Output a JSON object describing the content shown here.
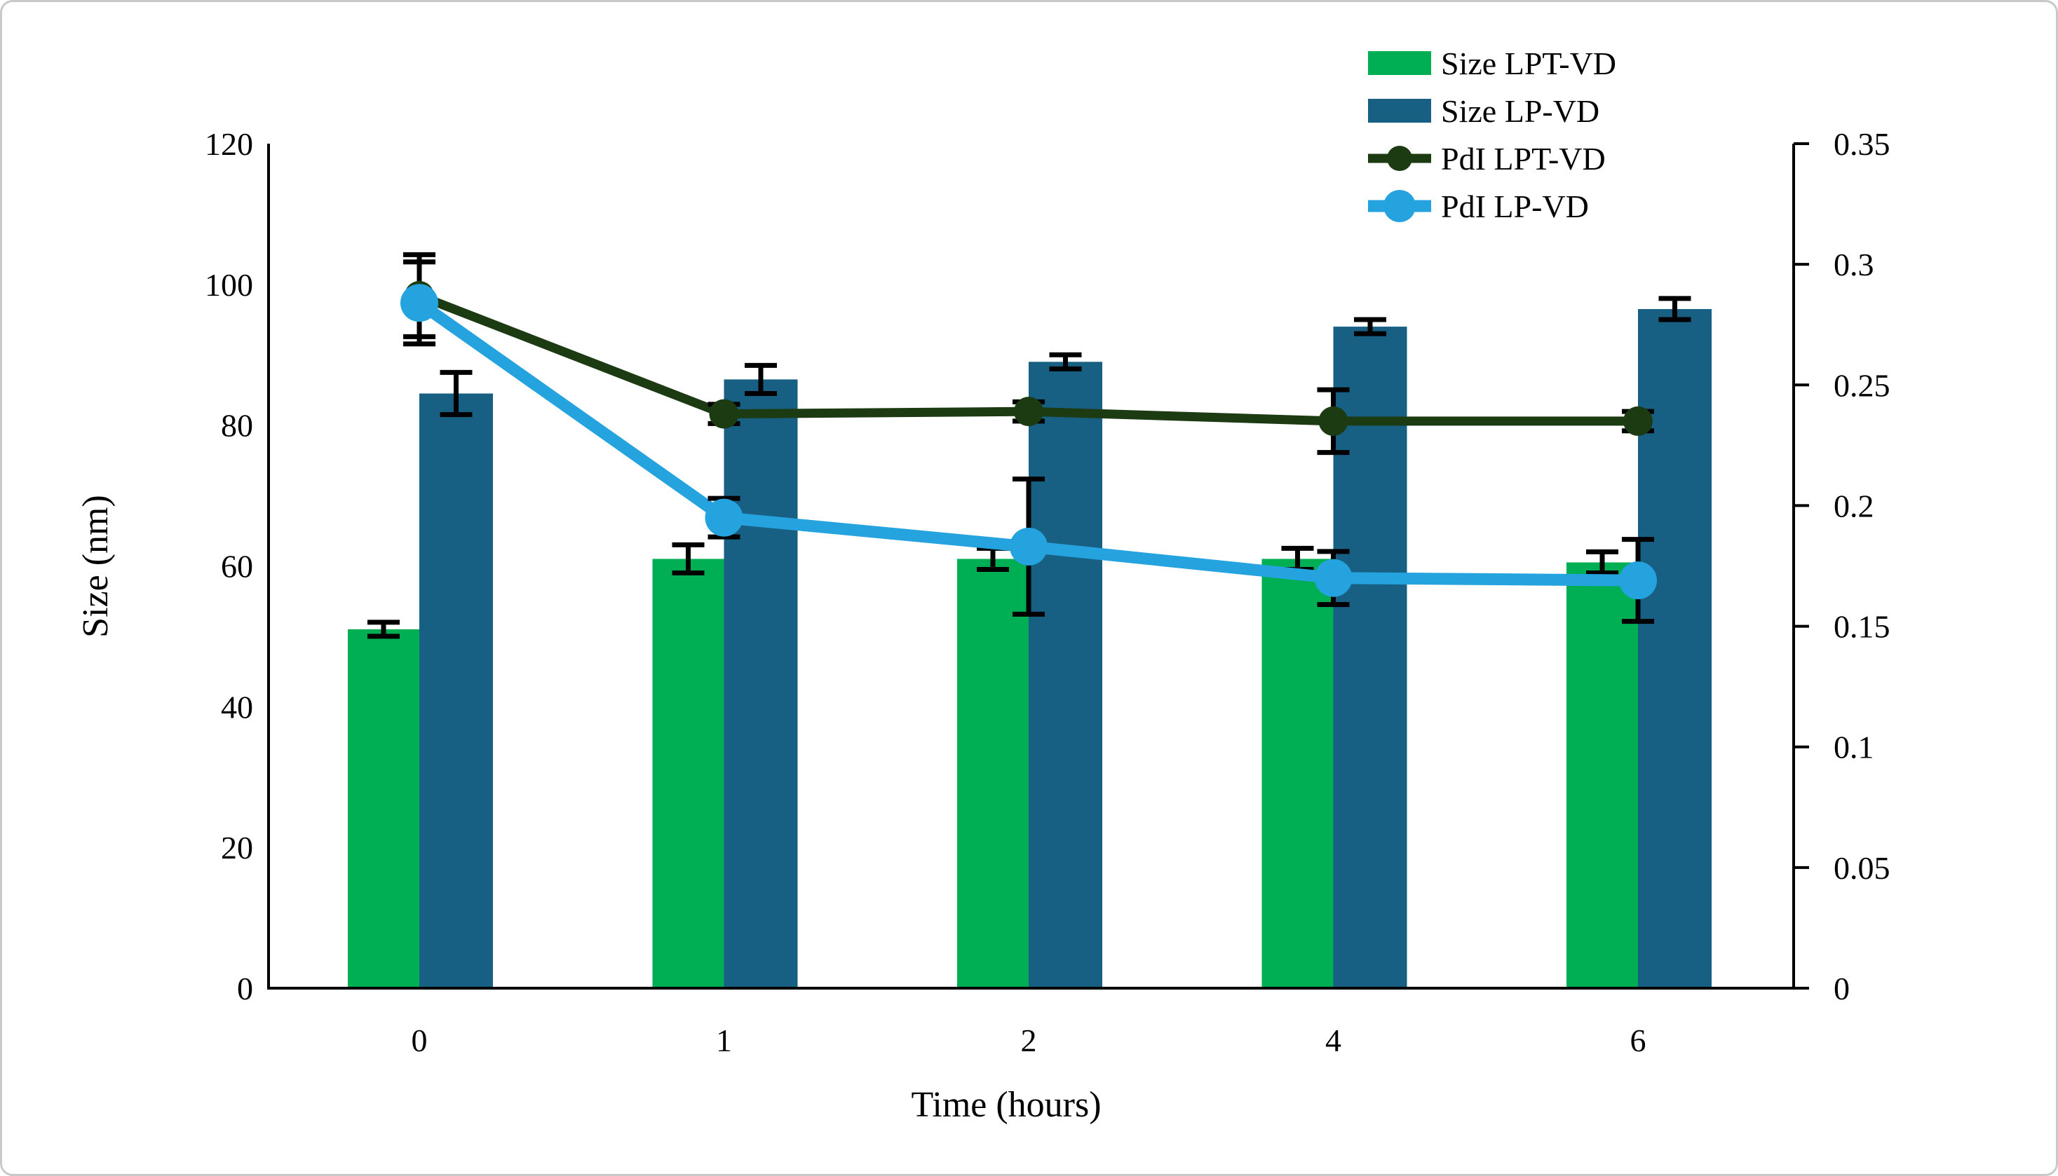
{
  "figure": {
    "background": "#ffffff",
    "border_color": "#c9c9c9"
  },
  "legend": {
    "position": "top-right",
    "items": [
      {
        "label": "Size LPT-VD",
        "type": "bar",
        "color": "#00AE54"
      },
      {
        "label": "Size LP-VD",
        "type": "bar",
        "color": "#175F83"
      },
      {
        "label": "PdI LPT-VD",
        "type": "line",
        "color": "#1C3B12",
        "line_width": 13,
        "marker_radius": 21
      },
      {
        "label": "PdI LP-VD",
        "type": "line",
        "color": "#25A3DF",
        "line_width": 17,
        "marker_radius": 27
      }
    ]
  },
  "chart_data": {
    "type": "bar+line",
    "categories": [
      "0",
      "1",
      "2",
      "4",
      "6"
    ],
    "x_axis": {
      "title": "Time (hours)"
    },
    "left_axis": {
      "title": "Size (nm)",
      "min": 0,
      "max": 120,
      "ticks": [
        0,
        20,
        40,
        60,
        80,
        100,
        120
      ],
      "tick_labels": [
        "0",
        "20",
        "40",
        "60",
        "80",
        "100",
        "120"
      ]
    },
    "right_axis": {
      "title": "",
      "min": 0,
      "max": 0.35,
      "ticks": [
        0,
        0.05,
        0.1,
        0.15,
        0.2,
        0.25,
        0.3,
        0.35
      ],
      "tick_labels": [
        "0",
        "0.05",
        "0.1",
        "0.15",
        "0.2",
        "0.25",
        "0.3",
        "0.35"
      ]
    },
    "grid": "off",
    "error_bar_color": "#000000",
    "series": [
      {
        "name": "Size LPT-VD",
        "type": "bar",
        "axis": "left",
        "color": "#00AE54",
        "values": [
          51,
          61,
          61,
          61,
          60.5
        ],
        "errors": [
          1,
          2,
          1.5,
          1.5,
          1.5
        ]
      },
      {
        "name": "Size LP-VD",
        "type": "bar",
        "axis": "left",
        "color": "#175F83",
        "values": [
          84.5,
          86.5,
          89,
          94,
          96.5
        ],
        "errors": [
          3,
          2,
          1,
          1,
          1.5
        ]
      },
      {
        "name": "PdI LPT-VD",
        "type": "line",
        "axis": "right",
        "color": "#1C3B12",
        "line_width": 13,
        "marker_radius": 21,
        "values": [
          0.287,
          0.238,
          0.239,
          0.235,
          0.235
        ],
        "errors": [
          0.017,
          0.004,
          0.004,
          0.013,
          0.004
        ]
      },
      {
        "name": "PdI LP-VD",
        "type": "line",
        "axis": "right",
        "color": "#25A3DF",
        "line_width": 17,
        "marker_radius": 27,
        "values": [
          0.284,
          0.195,
          0.183,
          0.17,
          0.169
        ],
        "errors": [
          0.017,
          0.008,
          0.028,
          0.011,
          0.017
        ]
      }
    ]
  }
}
